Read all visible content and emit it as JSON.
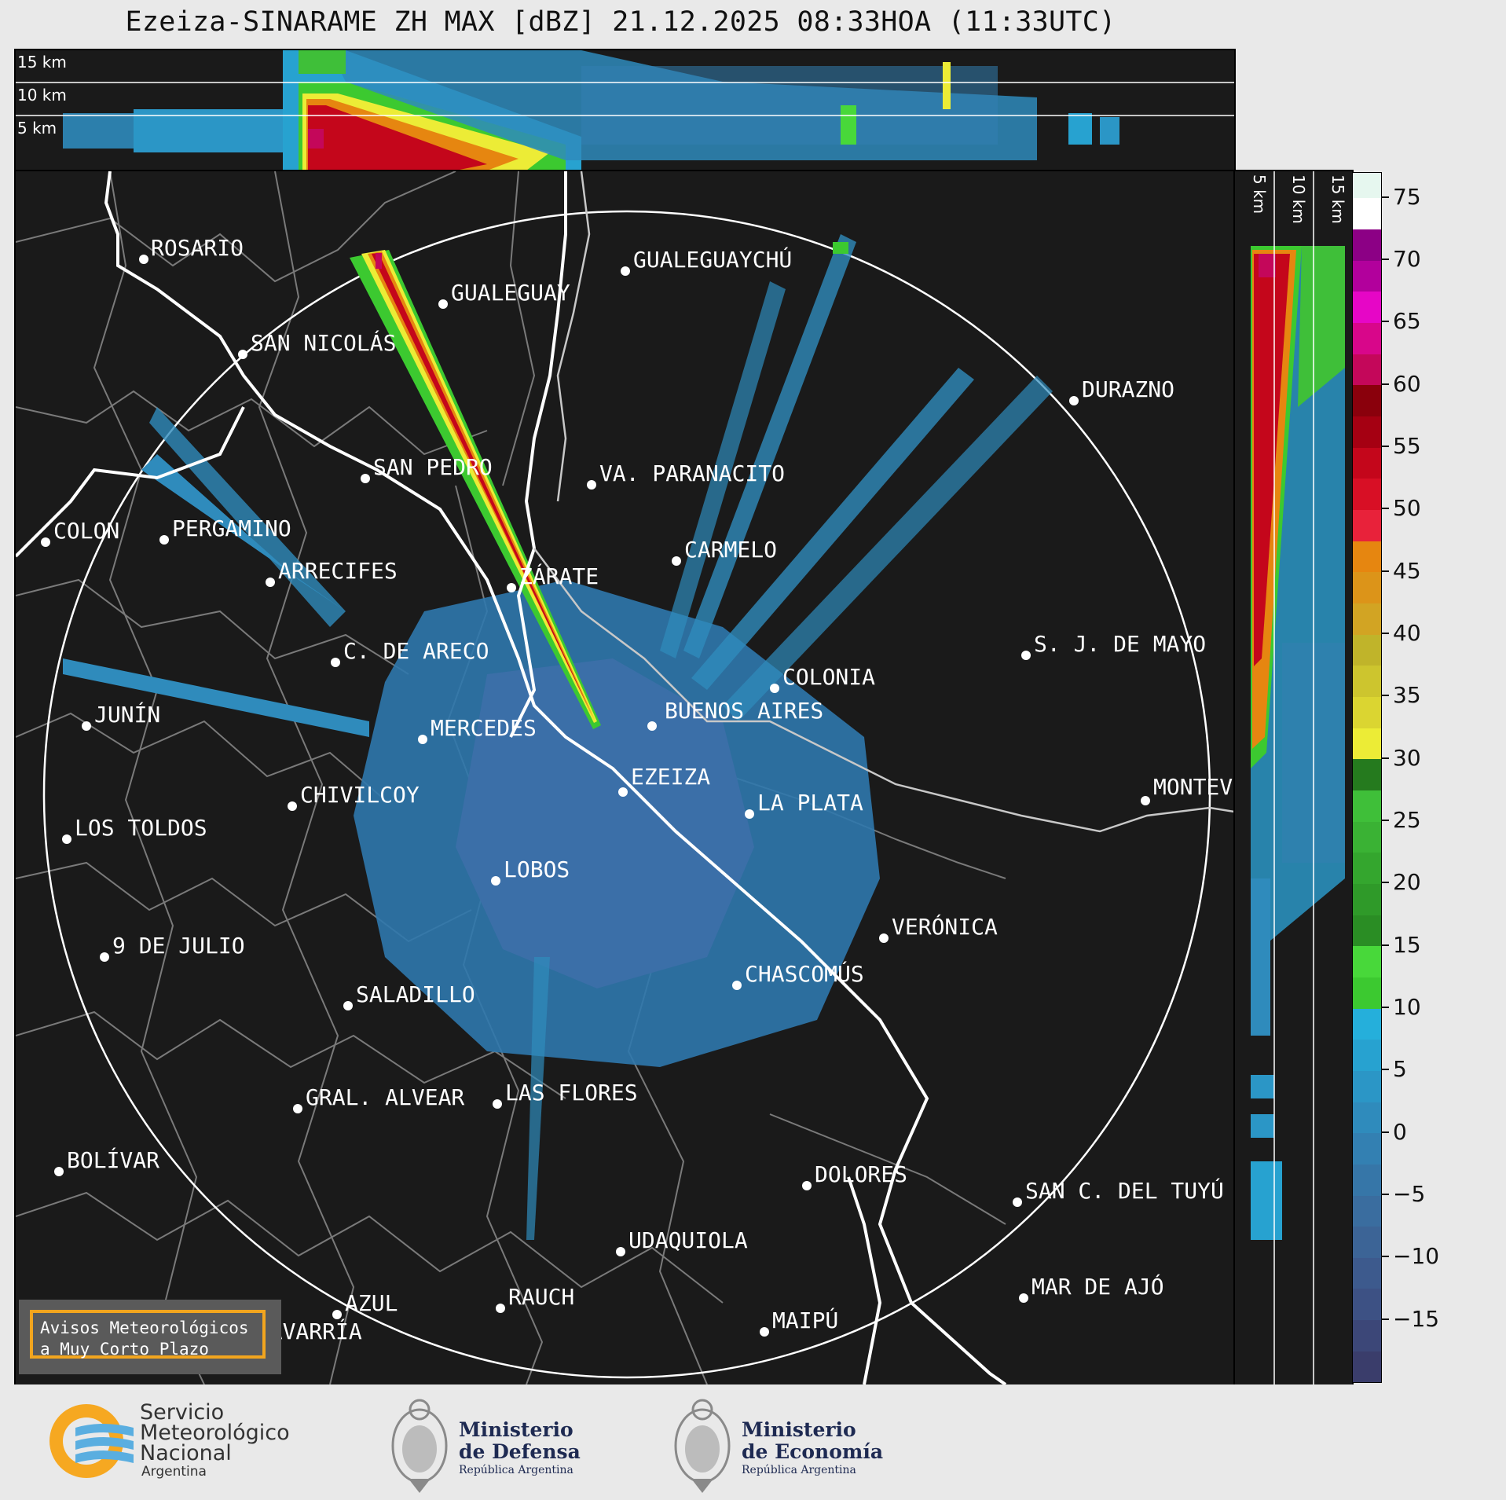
{
  "title": "Ezeiza-SINARAME ZH MAX [dBZ] 21.12.2025 08:33HOA (11:33UTC)",
  "top_panel": {
    "height_labels": [
      "15 km",
      "10 km",
      "5 km"
    ]
  },
  "side_panel": {
    "height_labels": [
      "5 km",
      "10 km",
      "15 km"
    ]
  },
  "colorbar": {
    "unit": "dBZ",
    "ticks": [
      "75",
      "70",
      "65",
      "60",
      "55",
      "50",
      "45",
      "40",
      "35",
      "30",
      "25",
      "20",
      "15",
      "10",
      "5",
      "0",
      "−5",
      "−10",
      "−15"
    ],
    "range": [
      -20,
      77
    ],
    "colors": [
      "#3a3d6b",
      "#3c4778",
      "#3d5184",
      "#3d5a8d",
      "#3c6496",
      "#3a6d9f",
      "#3676a8",
      "#3380b2",
      "#2f8bbc",
      "#2b96c6",
      "#27a2d0",
      "#25afdb",
      "#3cc930",
      "#48d83a",
      "#2a8d24",
      "#2f9a29",
      "#34a62e",
      "#3ab234",
      "#3fbf39",
      "#257a1e",
      "#ecec36",
      "#dbd531",
      "#cdc52e",
      "#c0b42a",
      "#d2a423",
      "#dc9419",
      "#e68610",
      "#e8223a",
      "#d80f25",
      "#c4061b",
      "#a50012",
      "#8a000c",
      "#c4075a",
      "#d8068a",
      "#e606c6",
      "#b2009c",
      "#8c0085",
      "#ffffff",
      "#e6f7ef",
      "#cdf0de",
      "#b3e9cf",
      "#9ae2c0",
      "#86dcb6",
      "#7cd7b0"
    ],
    "thresholds": [
      -20,
      -17.5,
      -15,
      -12.5,
      -10,
      -7.5,
      -5,
      -2.5,
      0,
      2.5,
      5,
      7.5,
      10,
      12.5,
      15,
      17.5,
      20,
      22.5,
      25,
      27.5,
      30,
      32.5,
      35,
      37.5,
      40,
      42.5,
      45,
      47.5,
      50,
      52.5,
      55,
      57.5,
      60,
      62.5,
      65,
      67.5,
      70,
      72.5,
      75,
      77
    ]
  },
  "radar": {
    "name": "EZEIZA",
    "range_ring_km": 240
  },
  "cities": [
    {
      "name": "ROSARIO"
    },
    {
      "name": "GUALEGUAYCHÚ"
    },
    {
      "name": "GUALEGUAY"
    },
    {
      "name": "SAN NICOLÁS"
    },
    {
      "name": "DURAZNO"
    },
    {
      "name": "SAN PEDRO"
    },
    {
      "name": "VA. PARANACITO"
    },
    {
      "name": "COLON"
    },
    {
      "name": "PERGAMINO"
    },
    {
      "name": "CARMELO"
    },
    {
      "name": "ARRECIFES"
    },
    {
      "name": "ZÁRATE"
    },
    {
      "name": "S. J. DE MAYO"
    },
    {
      "name": "C. DE ARECO"
    },
    {
      "name": "COLONIA"
    },
    {
      "name": "JUNÍN"
    },
    {
      "name": "BUENOS AIRES"
    },
    {
      "name": "MERCEDES"
    },
    {
      "name": "EZEIZA"
    },
    {
      "name": "MONTEVIDEO"
    },
    {
      "name": "CHIVILCOY"
    },
    {
      "name": "LA PLATA"
    },
    {
      "name": "LOS TOLDOS"
    },
    {
      "name": "LOBOS"
    },
    {
      "name": "VERÓNICA"
    },
    {
      "name": "9 DE JULIO"
    },
    {
      "name": "CHASCOMÚS"
    },
    {
      "name": "SALADILLO"
    },
    {
      "name": "GRAL. ALVEAR"
    },
    {
      "name": "LAS FLORES"
    },
    {
      "name": "BOLÍVAR"
    },
    {
      "name": "DOLORES"
    },
    {
      "name": "SAN C. DEL TUYÚ"
    },
    {
      "name": "UDAQUIOLA"
    },
    {
      "name": "MAR DE AJÓ"
    },
    {
      "name": "AZUL"
    },
    {
      "name": "RAUCH"
    },
    {
      "name": "MAIPÚ"
    },
    {
      "name": "OLAVARRÍA"
    }
  ],
  "warning_box": {
    "line1": "Avisos Meteorológicos",
    "line2": "a Muy Corto Plazo"
  },
  "footer": {
    "smn": {
      "line1": "Servicio",
      "line2": "Meteorológico",
      "line3": "Nacional",
      "line4": "Argentina"
    },
    "defensa": {
      "line1": "Ministerio",
      "line2": "de Defensa",
      "line3": "República Argentina"
    },
    "economia": {
      "line1": "Ministerio",
      "line2": "de Economía",
      "line3": "República Argentina"
    }
  }
}
